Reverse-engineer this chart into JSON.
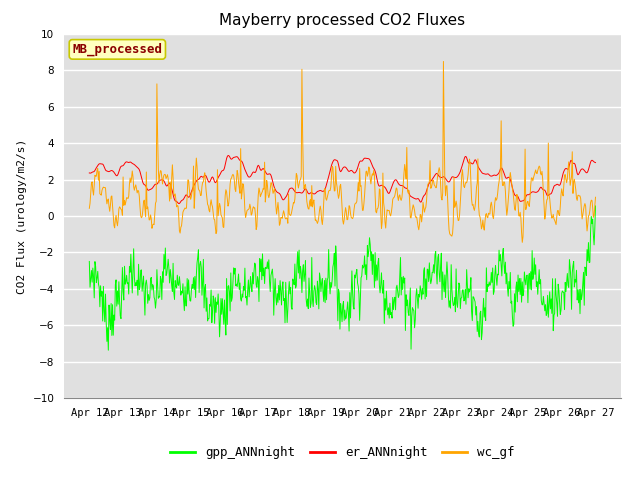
{
  "title": "Mayberry processed CO2 Fluxes",
  "ylabel": "CO2 Flux (urology/m2/s)",
  "ylim": [
    -10,
    10
  ],
  "yticks": [
    -10,
    -8,
    -6,
    -4,
    -2,
    0,
    2,
    4,
    6,
    8,
    10
  ],
  "xlabel_ticks": [
    "Apr 12",
    "Apr 13",
    "Apr 14",
    "Apr 15",
    "Apr 16",
    "Apr 17",
    "Apr 18",
    "Apr 19",
    "Apr 20",
    "Apr 21",
    "Apr 22",
    "Apr 23",
    "Apr 24",
    "Apr 25",
    "Apr 26",
    "Apr 27"
  ],
  "legend_label": "MB_processed",
  "series_labels": [
    "gpp_ANNnight",
    "er_ANNnight",
    "wc_gf"
  ],
  "series_colors": [
    "#00ff00",
    "#ff0000",
    "#ffa500"
  ],
  "background_color": "#e0e0e0",
  "title_fontsize": 11,
  "axis_fontsize": 8,
  "tick_fontsize": 7.5,
  "legend_fontsize": 9,
  "linewidth": 0.7,
  "n_points": 720,
  "random_seed": 7
}
